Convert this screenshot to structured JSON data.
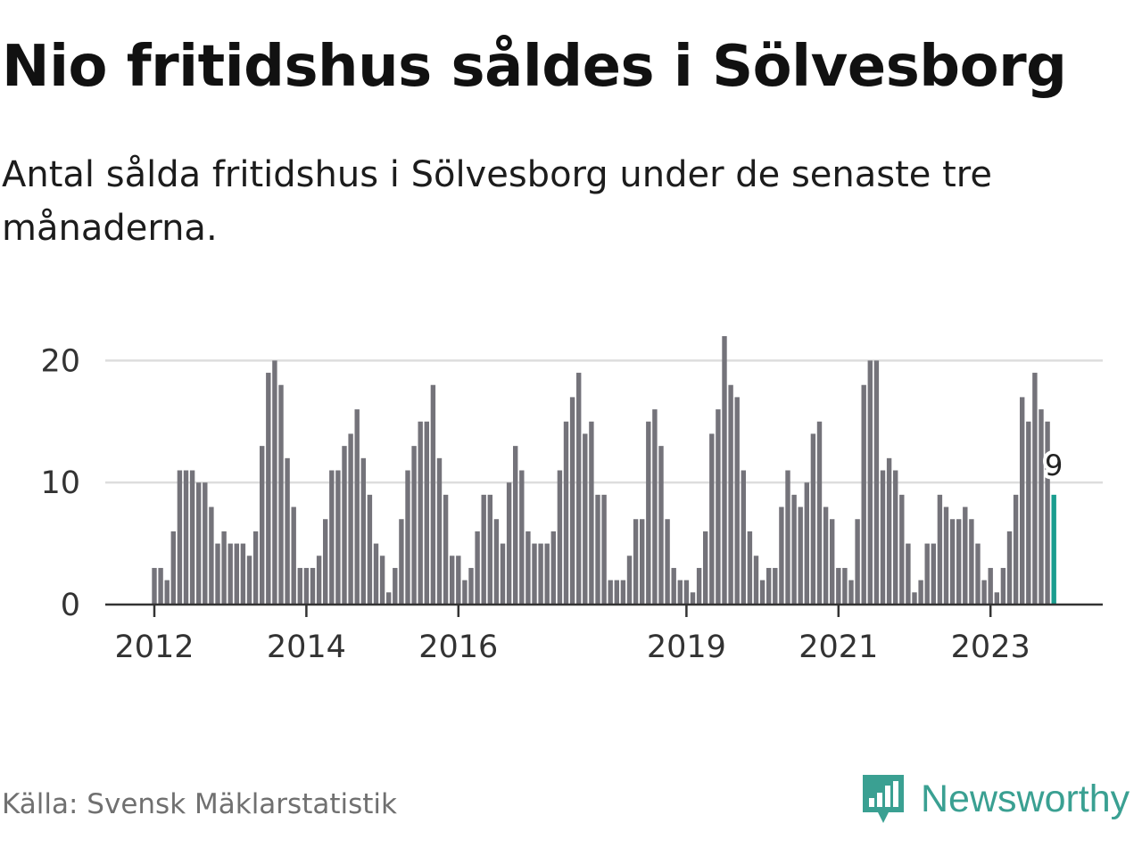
{
  "title": "Nio fritidshus såldes i Sölvesborg",
  "subtitle": "Antal sålda fritidshus i Sölvesborg under de senaste tre månaderna.",
  "source": "Källa: Svensk Mäklarstatistik",
  "brand": {
    "name": "Newsworthy",
    "logo_icon": "newsworthy-chart-bubble-icon",
    "color": "#3aa092"
  },
  "colors": {
    "bar": "#74737a",
    "highlight": "#1a9d8f",
    "grid": "#dddddd",
    "axis": "#333333"
  },
  "chart_data": {
    "type": "bar",
    "title": "Nio fritidshus såldes i Sölvesborg",
    "xlabel": "",
    "ylabel": "",
    "ylim": [
      0,
      22
    ],
    "yticks": [
      0,
      10,
      20
    ],
    "grid": true,
    "x_tick_labels": [
      "2012",
      "2014",
      "2016",
      "2019",
      "2021",
      "2023"
    ],
    "x_tick_positions": [
      "2012-01",
      "2014-01",
      "2016-01",
      "2019-01",
      "2021-01",
      "2023-01"
    ],
    "start_month": "2012-01",
    "end_month": "2023-11",
    "values": [
      3,
      3,
      2,
      6,
      11,
      11,
      11,
      10,
      10,
      8,
      5,
      6,
      5,
      5,
      5,
      4,
      6,
      13,
      19,
      20,
      18,
      12,
      8,
      3,
      3,
      3,
      4,
      7,
      11,
      11,
      13,
      14,
      16,
      12,
      9,
      5,
      4,
      1,
      3,
      7,
      11,
      13,
      15,
      15,
      18,
      12,
      9,
      4,
      4,
      2,
      3,
      6,
      9,
      9,
      7,
      5,
      10,
      13,
      11,
      6,
      5,
      5,
      5,
      6,
      11,
      15,
      17,
      19,
      14,
      15,
      9,
      9,
      2,
      2,
      2,
      4,
      7,
      7,
      15,
      16,
      13,
      7,
      3,
      2,
      2,
      1,
      3,
      6,
      14,
      16,
      22,
      18,
      17,
      11,
      6,
      4,
      2,
      3,
      3,
      8,
      11,
      9,
      8,
      10,
      14,
      15,
      8,
      7,
      3,
      3,
      2,
      7,
      18,
      20,
      20,
      11,
      12,
      11,
      9,
      5,
      1,
      2,
      5,
      5,
      9,
      8,
      7,
      7,
      8,
      7,
      5,
      2,
      3,
      1,
      3,
      6,
      9,
      17,
      15,
      19,
      16,
      15,
      9
    ],
    "highlight_last": true,
    "last_value_label": "9"
  }
}
